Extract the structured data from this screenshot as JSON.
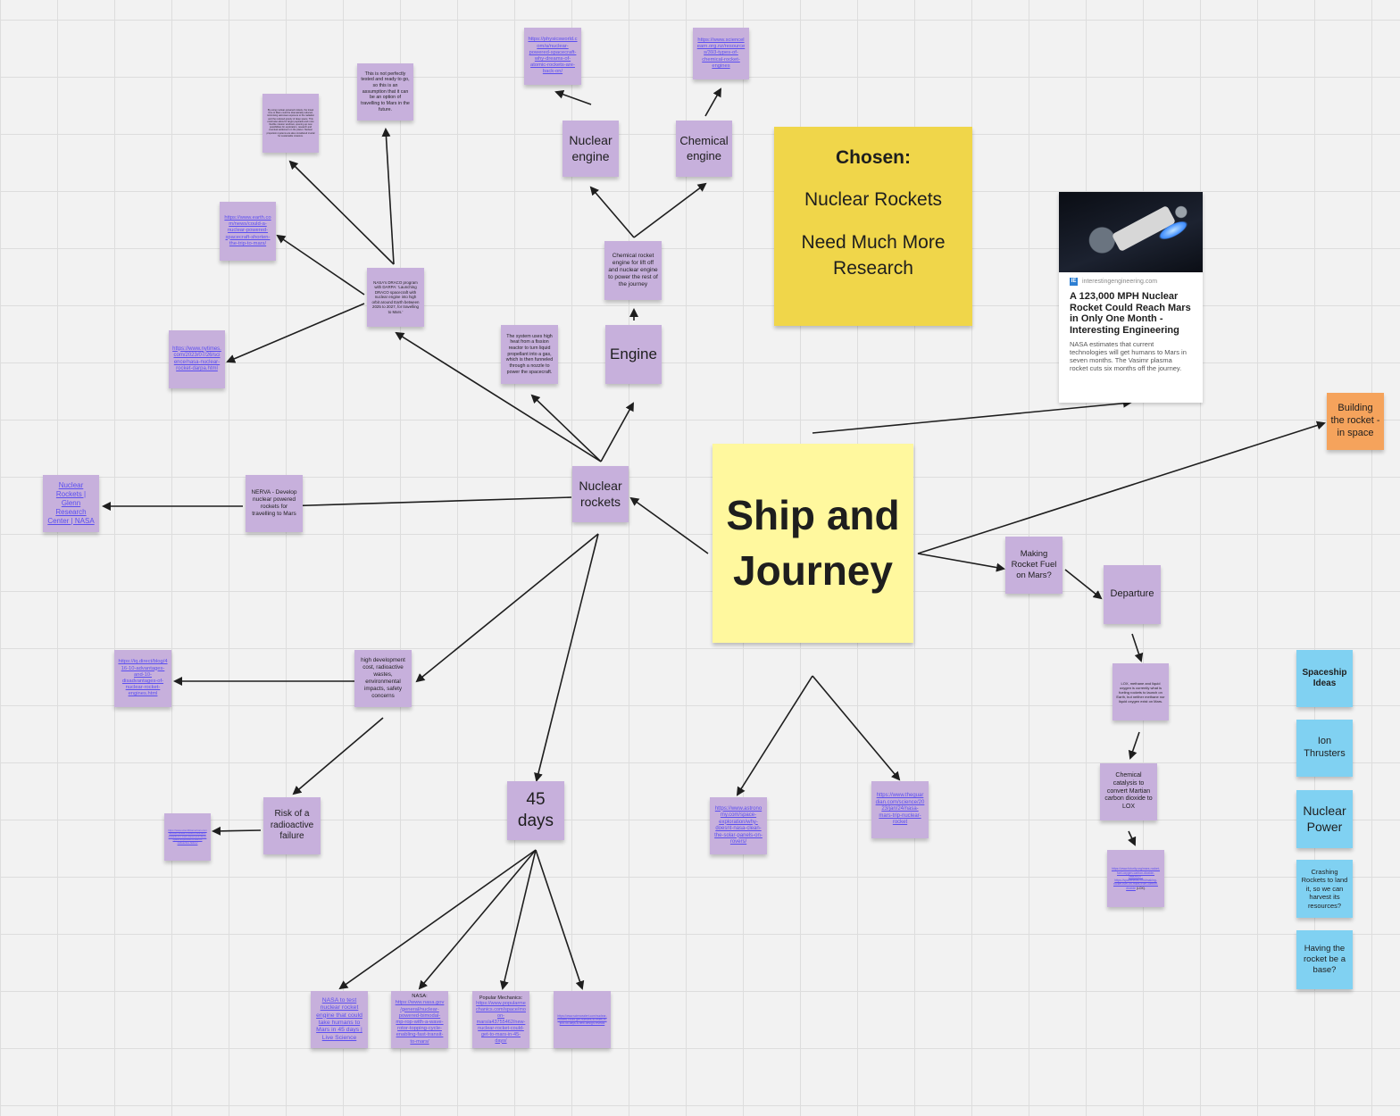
{
  "notes": {
    "ship_journey": "Ship and Journey",
    "chosen_title": "Chosen:",
    "chosen_line1": "Nuclear Rockets",
    "chosen_line2": "Need Much More Research",
    "nuclear_rockets": "Nuclear rockets",
    "engine": "Engine",
    "nuclear_engine": "Nuclear engine",
    "chemical_engine": "Chemical engine",
    "chem_lift": "Chemical rocket engine for lift off and nuclear engine to power the rest of the journey",
    "fission_system": "The system uses high heat from a fission reactor to turn liquid propellant into a gas, which is then funneled through a nozzle to power the spacecraft.",
    "link_physicsworld": "https://physicsworld.com/a/nuclear-powered-spacecraft-why-dreams-of-atomic-rockets-are-back-on/",
    "link_sciencelearn": "https://www.sciencelearn.org.nz/resources/393-types-of-chemical-rocket-engines",
    "not_tested": "This is not perfectly tested and ready to go, so this is an assumption that it can be an option of travelling to Mars in the future.",
    "tiny_text": "By using nuclear-powered rockets, the travel time to Mars could be dramatically reduced, minimising astronaut exposure to the radiation and the reduced gravity of deep space. This could also allow for larger payloads and more flexible mission windows, opening up new possibilities for exploration, research and eventual settlement on the planet. Nuclear propulsion systems are also considered crucial for sustainable missions.",
    "link_earthcom": "https://www.earth.com/news/could-a-nuclear-powered-spacecraft-shorten-the-trip-to-mars/",
    "draco": "NASA's DRACO program with DARPA: 'Launching DRACO spacecraft with nuclear engine into high orbit around Earth between 2025 to 2027, for travelling to Mars.'",
    "link_nytimes": "https://www.nytimes.com/2023/07/26/science/nasa-nuclear-rocket-darpa.html",
    "nerva": "NERVA - Develop nuclear powered rockets for travelling to Mars",
    "link_nasa_glenn": "Nuclear Rockets | Glenn Research Center | NASA",
    "high_cost": "high development cost, radioactive wastes, environmental impacts, safety concerns",
    "link_iq": "https://iq.direct/blog/416-10-advantages-and-10-disadvantages-of-nuclear-rocket-engines.html",
    "risk_failure": "Risk of a radioactive failure",
    "link_tiny_failure": "https://www.scientificamerican.com/article/nuclear-rockets-risks-and-rewards-for-mars-travel-and-deep-space-exploration-risks-of-radioactive-failure/",
    "days_45": "45 days",
    "link_livescience": "NASA to test nuclear rocket engine that could take humans to Mars in 45 days | Live Science",
    "nasa_label": "NASA: ",
    "link_nasa_gov": "https://www.nasa.gov/general/nuclear-powered-bimodal-mp-rop-with-a-wave-rotor-topping-cycle-enabling-fast-transit-to-mars/",
    "popmech_label": "Popular Mechanics: ",
    "link_popmech": "https://www.popularmechanics.com/space/moon-mars/a43755462/new-nuclear-rocket-could-get-to-mars-in-45-days/",
    "link_tiny_45": "https://www.sciencealert.com/nuclear-rockets-could-get-humans-to-mars-in-just-45-days-a-new-design-reveals",
    "link_astronomy": "https://www.astronomy.com/space-exploration/why-doesnt-nasa-clean-the-solar-panels-on-rovers/",
    "link_guardian": "https://www.theguardian.com/science/2023/jan/24/nasa-mars-trip-nuclear-rocket",
    "making_fuel": "Making Rocket Fuel on Mars?",
    "departure": "Departure",
    "lox_methane": "LOX, methane and liquid oxygen is currently what is fueling rockets to launch on Earth, but neither methane nor liquid oxygen exist on Mars.",
    "chemical_catalysis": "Chemical catalysis to convert Martian carbon dioxide to LOX",
    "link_fuel_tiny": "https://www.futurity.org/mars-rocket-fuel-oxygen-carbon-dioxide-2660442/ - https://spacenews.com/making-rocket-fuel-on-mars-from-carbon-dioxide",
    "fuel_tiny_suffix": " (LOX).",
    "building_rocket": "Building the rocket - in space",
    "spaceship_ideas": "Spaceship Ideas",
    "ion_thrusters": "Ion Thrusters",
    "nuclear_power": "Nuclear Power",
    "crashing_rockets": "Crashing Rockets to land it, so we can harvest its resources?",
    "rocket_base": "Having the rocket be a base?"
  },
  "card": {
    "source": "interestingengineering.com",
    "title": "A 123,000 MPH Nuclear Rocket Could Reach Mars in Only One Month - Interesting Engineering",
    "description": "NASA estimates that current technologies will get humans to Mars in seven months. The Vasimr plasma rocket cuts six months off the journey."
  },
  "colors": {
    "purple_note": "#c7b0dc",
    "blue_note": "#80d1f2",
    "orange_note": "#f5a35c",
    "yellow_note": "#f0d64a",
    "pale_yellow_note": "#fff89e",
    "link": "#5a4ef0"
  }
}
